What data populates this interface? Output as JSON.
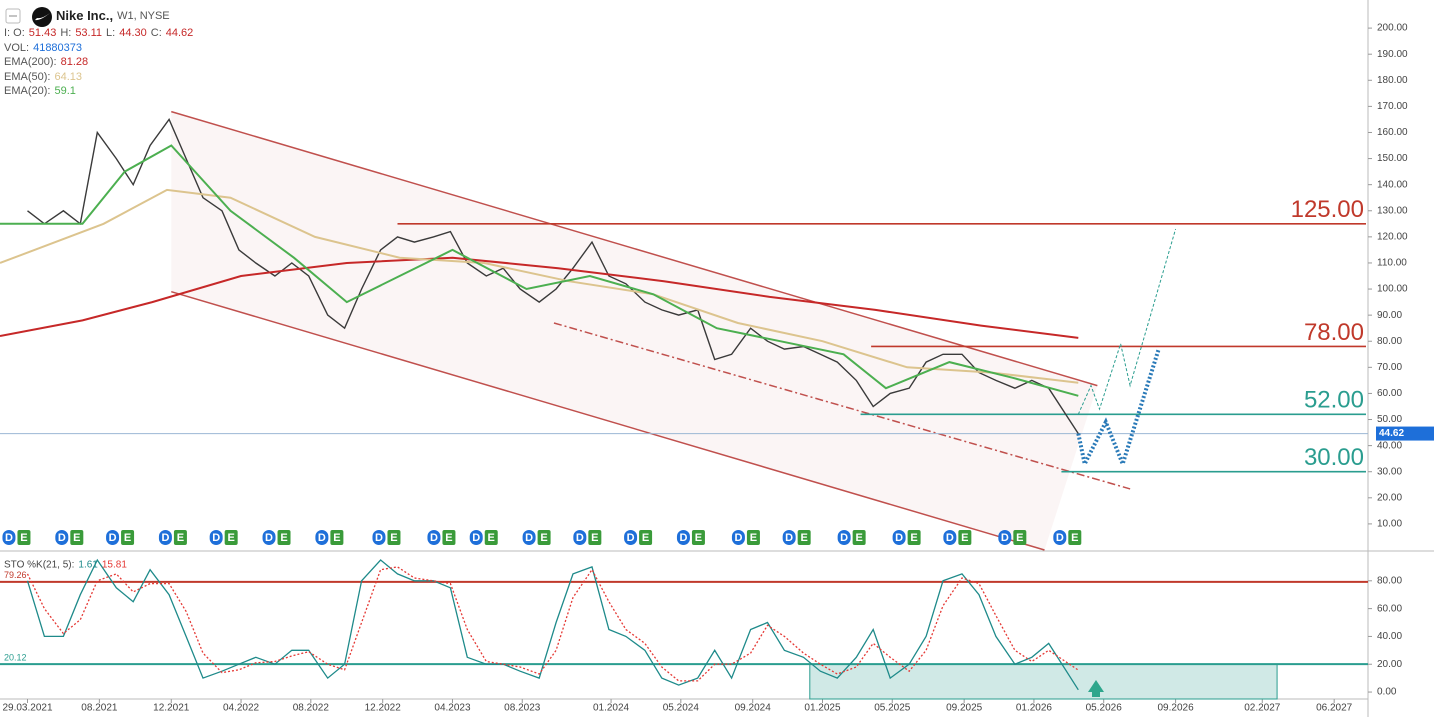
{
  "chart_data": {
    "type": "line",
    "title": "Nike Inc.,",
    "subtitle": "W1, NYSE",
    "quote": [
      {
        "label": "I: O:",
        "value": "51.43"
      },
      {
        "label": "H:",
        "value": "53.11"
      },
      {
        "label": "L:",
        "value": "44.30"
      },
      {
        "label": "C:",
        "value": "44.62"
      }
    ],
    "volume": {
      "label": "VOL:",
      "value": "41880373"
    },
    "xlim": [
      2021.11,
      2027.58
    ],
    "xticks": [
      {
        "value": 2021.24,
        "label": "29.03.2021"
      },
      {
        "value": 2021.58,
        "label": "08.2021"
      },
      {
        "value": 2021.92,
        "label": "12.2021"
      },
      {
        "value": 2022.25,
        "label": "04.2022"
      },
      {
        "value": 2022.58,
        "label": "08.2022"
      },
      {
        "value": 2022.92,
        "label": "12.2022"
      },
      {
        "value": 2023.25,
        "label": "04.2023"
      },
      {
        "value": 2023.58,
        "label": "08.2023"
      },
      {
        "value": 2024.0,
        "label": "01.2024"
      },
      {
        "value": 2024.33,
        "label": "05.2024"
      },
      {
        "value": 2024.67,
        "label": "09.2024"
      },
      {
        "value": 2025.0,
        "label": "01.2025"
      },
      {
        "value": 2025.33,
        "label": "05.2025"
      },
      {
        "value": 2025.67,
        "label": "09.2025"
      },
      {
        "value": 2026.0,
        "label": "01.2026"
      },
      {
        "value": 2026.33,
        "label": "05.2026"
      },
      {
        "value": 2026.67,
        "label": "09.2026"
      },
      {
        "value": 2027.08,
        "label": "02.2027"
      },
      {
        "value": 2027.42,
        "label": "06.2027"
      }
    ],
    "ylim": [
      0,
      210
    ],
    "yticks": [
      {
        "value": 10,
        "label": "10.00"
      },
      {
        "value": 20,
        "label": "20.00"
      },
      {
        "value": 30,
        "label": "30.00"
      },
      {
        "value": 40,
        "label": "40.00"
      },
      {
        "value": 50,
        "label": "50.00"
      },
      {
        "value": 60,
        "label": "60.00"
      },
      {
        "value": 70,
        "label": "70.00"
      },
      {
        "value": 80,
        "label": "80.00"
      },
      {
        "value": 90,
        "label": "90.00"
      },
      {
        "value": 100,
        "label": "100.00"
      },
      {
        "value": 110,
        "label": "110.00"
      },
      {
        "value": 120,
        "label": "120.00"
      },
      {
        "value": 130,
        "label": "130.00"
      },
      {
        "value": 140,
        "label": "140.00"
      },
      {
        "value": 150,
        "label": "150.00"
      },
      {
        "value": 160,
        "label": "160.00"
      },
      {
        "value": 170,
        "label": "170.00"
      },
      {
        "value": 180,
        "label": "180.00"
      },
      {
        "value": 190,
        "label": "190.00"
      },
      {
        "value": 200,
        "label": "200.00"
      }
    ],
    "series": [
      {
        "color": "#3a3a3a",
        "x": [
          2021.24,
          2021.32,
          2021.41,
          2021.49,
          2021.57,
          2021.66,
          2021.74,
          2021.82,
          2021.91,
          2021.99,
          2022.07,
          2022.16,
          2022.24,
          2022.32,
          2022.41,
          2022.49,
          2022.57,
          2022.66,
          2022.74,
          2022.82,
          2022.91,
          2022.99,
          2023.07,
          2023.16,
          2023.24,
          2023.32,
          2023.41,
          2023.49,
          2023.57,
          2023.66,
          2023.74,
          2023.82,
          2023.91,
          2023.99,
          2024.07,
          2024.16,
          2024.24,
          2024.32,
          2024.41,
          2024.49,
          2024.57,
          2024.66,
          2024.74,
          2024.82,
          2024.91,
          2024.99,
          2025.07,
          2025.16,
          2025.24,
          2025.32,
          2025.41,
          2025.49,
          2025.57,
          2025.66,
          2025.74,
          2025.82,
          2025.91,
          2025.99,
          2026.07,
          2026.21
        ],
        "values": [
          130,
          125,
          130,
          125,
          160,
          150,
          140,
          155,
          165,
          150,
          135,
          130,
          115,
          110,
          105,
          110,
          105,
          90,
          85,
          100,
          115,
          120,
          118,
          120,
          122,
          110,
          105,
          108,
          100,
          95,
          100,
          108,
          118,
          105,
          102,
          95,
          92,
          90,
          92,
          73,
          75,
          85,
          80,
          77,
          78,
          75,
          72,
          65,
          55,
          60,
          62,
          72,
          75,
          75,
          68,
          65,
          62,
          65,
          62,
          44.62
        ]
      },
      {
        "name": "EMA(200):",
        "color": "#c62828",
        "x": [
          2021.11,
          2021.5,
          2021.83,
          2022.25,
          2022.75,
          2023.25,
          2023.75,
          2024.25,
          2024.75,
          2025.25,
          2025.75,
          2026.21
        ],
        "values": [
          82,
          88,
          95,
          105,
          110,
          112,
          108,
          103,
          97,
          92,
          86,
          81.28
        ]
      },
      {
        "name": "EMA(50):",
        "color": "#dcc48e",
        "x": [
          2021.11,
          2021.6,
          2021.9,
          2022.2,
          2022.6,
          2023.0,
          2023.4,
          2023.8,
          2024.2,
          2024.6,
          2025.0,
          2025.4,
          2025.8,
          2026.21
        ],
        "values": [
          110,
          125,
          138,
          135,
          120,
          112,
          110,
          103,
          98,
          87,
          80,
          70,
          68,
          64.13
        ]
      },
      {
        "name": "EMA(20):",
        "color": "#4caf50",
        "x": [
          2021.11,
          2021.5,
          2021.7,
          2021.92,
          2022.2,
          2022.5,
          2022.75,
          2023.0,
          2023.25,
          2023.6,
          2023.9,
          2024.2,
          2024.5,
          2024.8,
          2025.1,
          2025.3,
          2025.6,
          2025.9,
          2026.21
        ],
        "values": [
          125,
          125,
          145,
          155,
          130,
          112,
          95,
          105,
          115,
          100,
          105,
          98,
          85,
          80,
          75,
          62,
          72,
          66,
          59.1
        ]
      }
    ],
    "levels": [
      {
        "value": 125,
        "label": "125.00",
        "color": "#c0392b",
        "from": 2022.99
      },
      {
        "value": 78,
        "label": "78.00",
        "color": "#c0392b",
        "from": 2025.23
      },
      {
        "value": 52,
        "label": "52.00",
        "color": "#2a9d8f",
        "from": 2025.18
      },
      {
        "value": 30,
        "label": "30.00",
        "color": "#2a9d8f",
        "from": 2026.13
      }
    ],
    "trendlines": [
      {
        "x": [
          2021.92,
          2026.3
        ],
        "y": [
          168,
          63
        ],
        "color": "#c0504d",
        "dash": "none"
      },
      {
        "x": [
          2021.92,
          2026.05
        ],
        "y": [
          99,
          0
        ],
        "color": "#c0504d",
        "dash": "none"
      },
      {
        "x": [
          2023.73,
          2026.455
        ],
        "y": [
          87,
          23.4
        ],
        "color": "#c0504d",
        "dash": "8 3 2 3"
      }
    ],
    "forecasts": [
      {
        "x": [
          2026.21,
          2026.24,
          2026.34,
          2026.42,
          2026.59
        ],
        "y": [
          44.62,
          33,
          49,
          33,
          77
        ],
        "color": "#2a7ab8",
        "dash": "2 2",
        "width": 4
      },
      {
        "x": [
          2026.21,
          2026.27,
          2026.31,
          2026.41,
          2026.455,
          2026.67
        ],
        "y": [
          52,
          63,
          54,
          79,
          63,
          123
        ],
        "color": "#2a9d8f",
        "dash": "3 2",
        "width": 1
      }
    ],
    "events": [
      {
        "x": 2021.15,
        "labels": [
          "D",
          "E"
        ]
      },
      {
        "x": 2021.4,
        "labels": [
          "D",
          "E"
        ]
      },
      {
        "x": 2021.64,
        "labels": [
          "D",
          "E"
        ]
      },
      {
        "x": 2021.89,
        "labels": [
          "D",
          "E"
        ]
      },
      {
        "x": 2022.13,
        "labels": [
          "D",
          "E"
        ]
      },
      {
        "x": 2022.38,
        "labels": [
          "D",
          "E"
        ]
      },
      {
        "x": 2022.63,
        "labels": [
          "D",
          "E"
        ]
      },
      {
        "x": 2022.9,
        "labels": [
          "D",
          "E"
        ]
      },
      {
        "x": 2023.16,
        "labels": [
          "D",
          "E"
        ]
      },
      {
        "x": 2023.36,
        "labels": [
          "D",
          "E"
        ]
      },
      {
        "x": 2023.61,
        "labels": [
          "D",
          "E"
        ]
      },
      {
        "x": 2023.85,
        "labels": [
          "D",
          "E"
        ]
      },
      {
        "x": 2024.09,
        "labels": [
          "D",
          "E"
        ]
      },
      {
        "x": 2024.34,
        "labels": [
          "D",
          "E"
        ]
      },
      {
        "x": 2024.6,
        "labels": [
          "D",
          "E"
        ]
      },
      {
        "x": 2024.84,
        "labels": [
          "D",
          "E"
        ]
      },
      {
        "x": 2025.1,
        "labels": [
          "D",
          "E"
        ]
      },
      {
        "x": 2025.36,
        "labels": [
          "D",
          "E"
        ]
      },
      {
        "x": 2025.6,
        "labels": [
          "D",
          "E"
        ]
      },
      {
        "x": 2025.86,
        "labels": [
          "D",
          "E"
        ]
      },
      {
        "x": 2026.12,
        "labels": [
          "D",
          "E"
        ]
      }
    ],
    "stochastic": {
      "label": "STO %K(21, 5):",
      "ylim": [
        -5,
        100
      ],
      "yticks": [
        {
          "value": 0,
          "label": "0.00"
        },
        {
          "value": 20,
          "label": "20.00"
        },
        {
          "value": 40,
          "label": "40.00"
        },
        {
          "value": 60,
          "label": "60.00"
        },
        {
          "value": 80,
          "label": "80.00"
        }
      ],
      "levels": [
        {
          "value": 79.26,
          "color": "#c0392b"
        },
        {
          "value": 20.12,
          "color": "#2a9d8f"
        }
      ],
      "zone_x": [
        2024.94,
        2027.15
      ],
      "x": [
        2021.24,
        2021.32,
        2021.41,
        2021.49,
        2021.57,
        2021.66,
        2021.74,
        2021.82,
        2021.91,
        2021.99,
        2022.07,
        2022.16,
        2022.24,
        2022.32,
        2022.41,
        2022.49,
        2022.57,
        2022.66,
        2022.74,
        2022.82,
        2022.91,
        2022.99,
        2023.07,
        2023.16,
        2023.24,
        2023.32,
        2023.41,
        2023.49,
        2023.57,
        2023.66,
        2023.74,
        2023.82,
        2023.91,
        2023.99,
        2024.07,
        2024.16,
        2024.24,
        2024.32,
        2024.41,
        2024.49,
        2024.57,
        2024.66,
        2024.74,
        2024.82,
        2024.91,
        2024.99,
        2025.07,
        2025.16,
        2025.24,
        2025.32,
        2025.41,
        2025.49,
        2025.57,
        2025.66,
        2025.74,
        2025.82,
        2025.91,
        2025.99,
        2026.07,
        2026.21
      ],
      "series": [
        {
          "color": "#1e8a8a",
          "dash": "none",
          "values": [
            80,
            40,
            40,
            70,
            95,
            75,
            65,
            88,
            70,
            40,
            10,
            15,
            20,
            25,
            20,
            30,
            30,
            10,
            20,
            80,
            95,
            85,
            80,
            80,
            75,
            25,
            20,
            20,
            15,
            10,
            50,
            85,
            90,
            45,
            40,
            30,
            10,
            5,
            10,
            30,
            10,
            45,
            50,
            30,
            25,
            15,
            10,
            25,
            45,
            10,
            20,
            40,
            80,
            85,
            70,
            40,
            20,
            25,
            35,
            1.61
          ]
        },
        {
          "color": "#e53935",
          "dash": "2 2",
          "values": [
            85,
            60,
            42,
            52,
            80,
            85,
            72,
            78,
            78,
            58,
            28,
            14,
            16,
            21,
            22,
            26,
            29,
            20,
            16,
            50,
            88,
            90,
            82,
            80,
            78,
            45,
            22,
            20,
            18,
            13,
            30,
            68,
            88,
            65,
            45,
            35,
            18,
            8,
            8,
            20,
            20,
            28,
            48,
            40,
            28,
            20,
            13,
            18,
            35,
            25,
            15,
            30,
            62,
            82,
            78,
            55,
            30,
            22,
            30,
            15.81
          ]
        }
      ]
    }
  }
}
